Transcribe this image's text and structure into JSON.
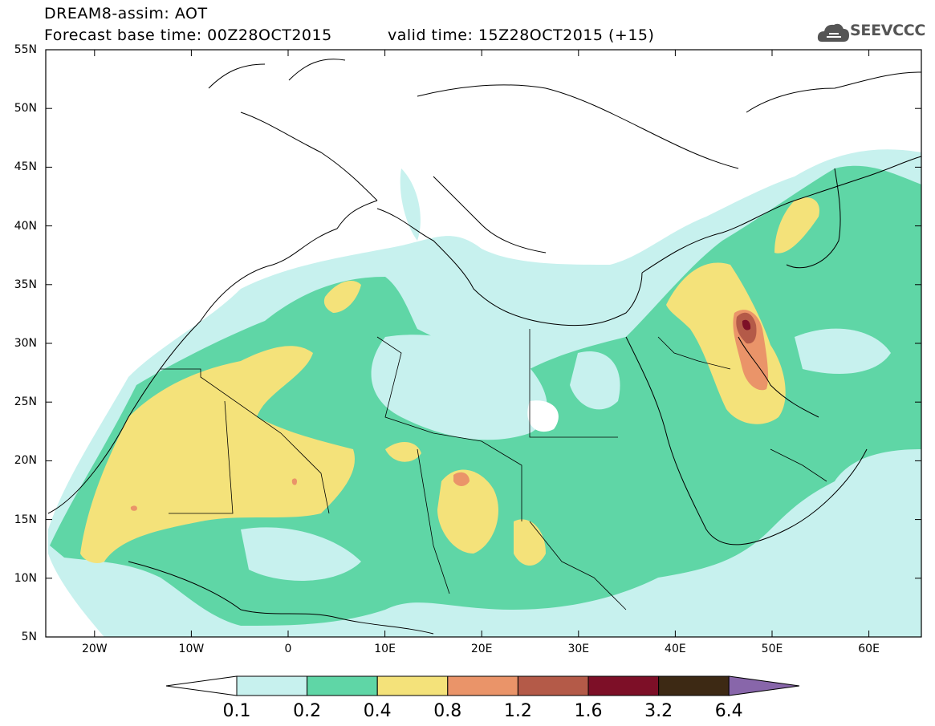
{
  "header": {
    "title_line1": "DREAM8-assim: AOT",
    "title_line2": "Forecast base time: 00Z28OCT2015",
    "valid_time": "valid time: 15Z28OCT2015 (+15)",
    "logo_text": "SEEVCCC"
  },
  "map": {
    "lat_labels": [
      "55N",
      "50N",
      "45N",
      "40N",
      "35N",
      "30N",
      "25N",
      "20N",
      "15N",
      "10N",
      "5N"
    ],
    "lon_labels": [
      "20W",
      "10W",
      "0",
      "10E",
      "20E",
      "30E",
      "40E",
      "50E",
      "60E"
    ]
  },
  "colorbar": {
    "labels": [
      "0.1",
      "0.2",
      "0.4",
      "0.8",
      "1.2",
      "1.6",
      "3.2",
      "6.4"
    ],
    "colors": [
      "#c7f1ee",
      "#5fd6a6",
      "#f4e27a",
      "#ea9469",
      "#b45a48",
      "#7d0f27",
      "#3d2914",
      "#8866aa"
    ]
  }
}
